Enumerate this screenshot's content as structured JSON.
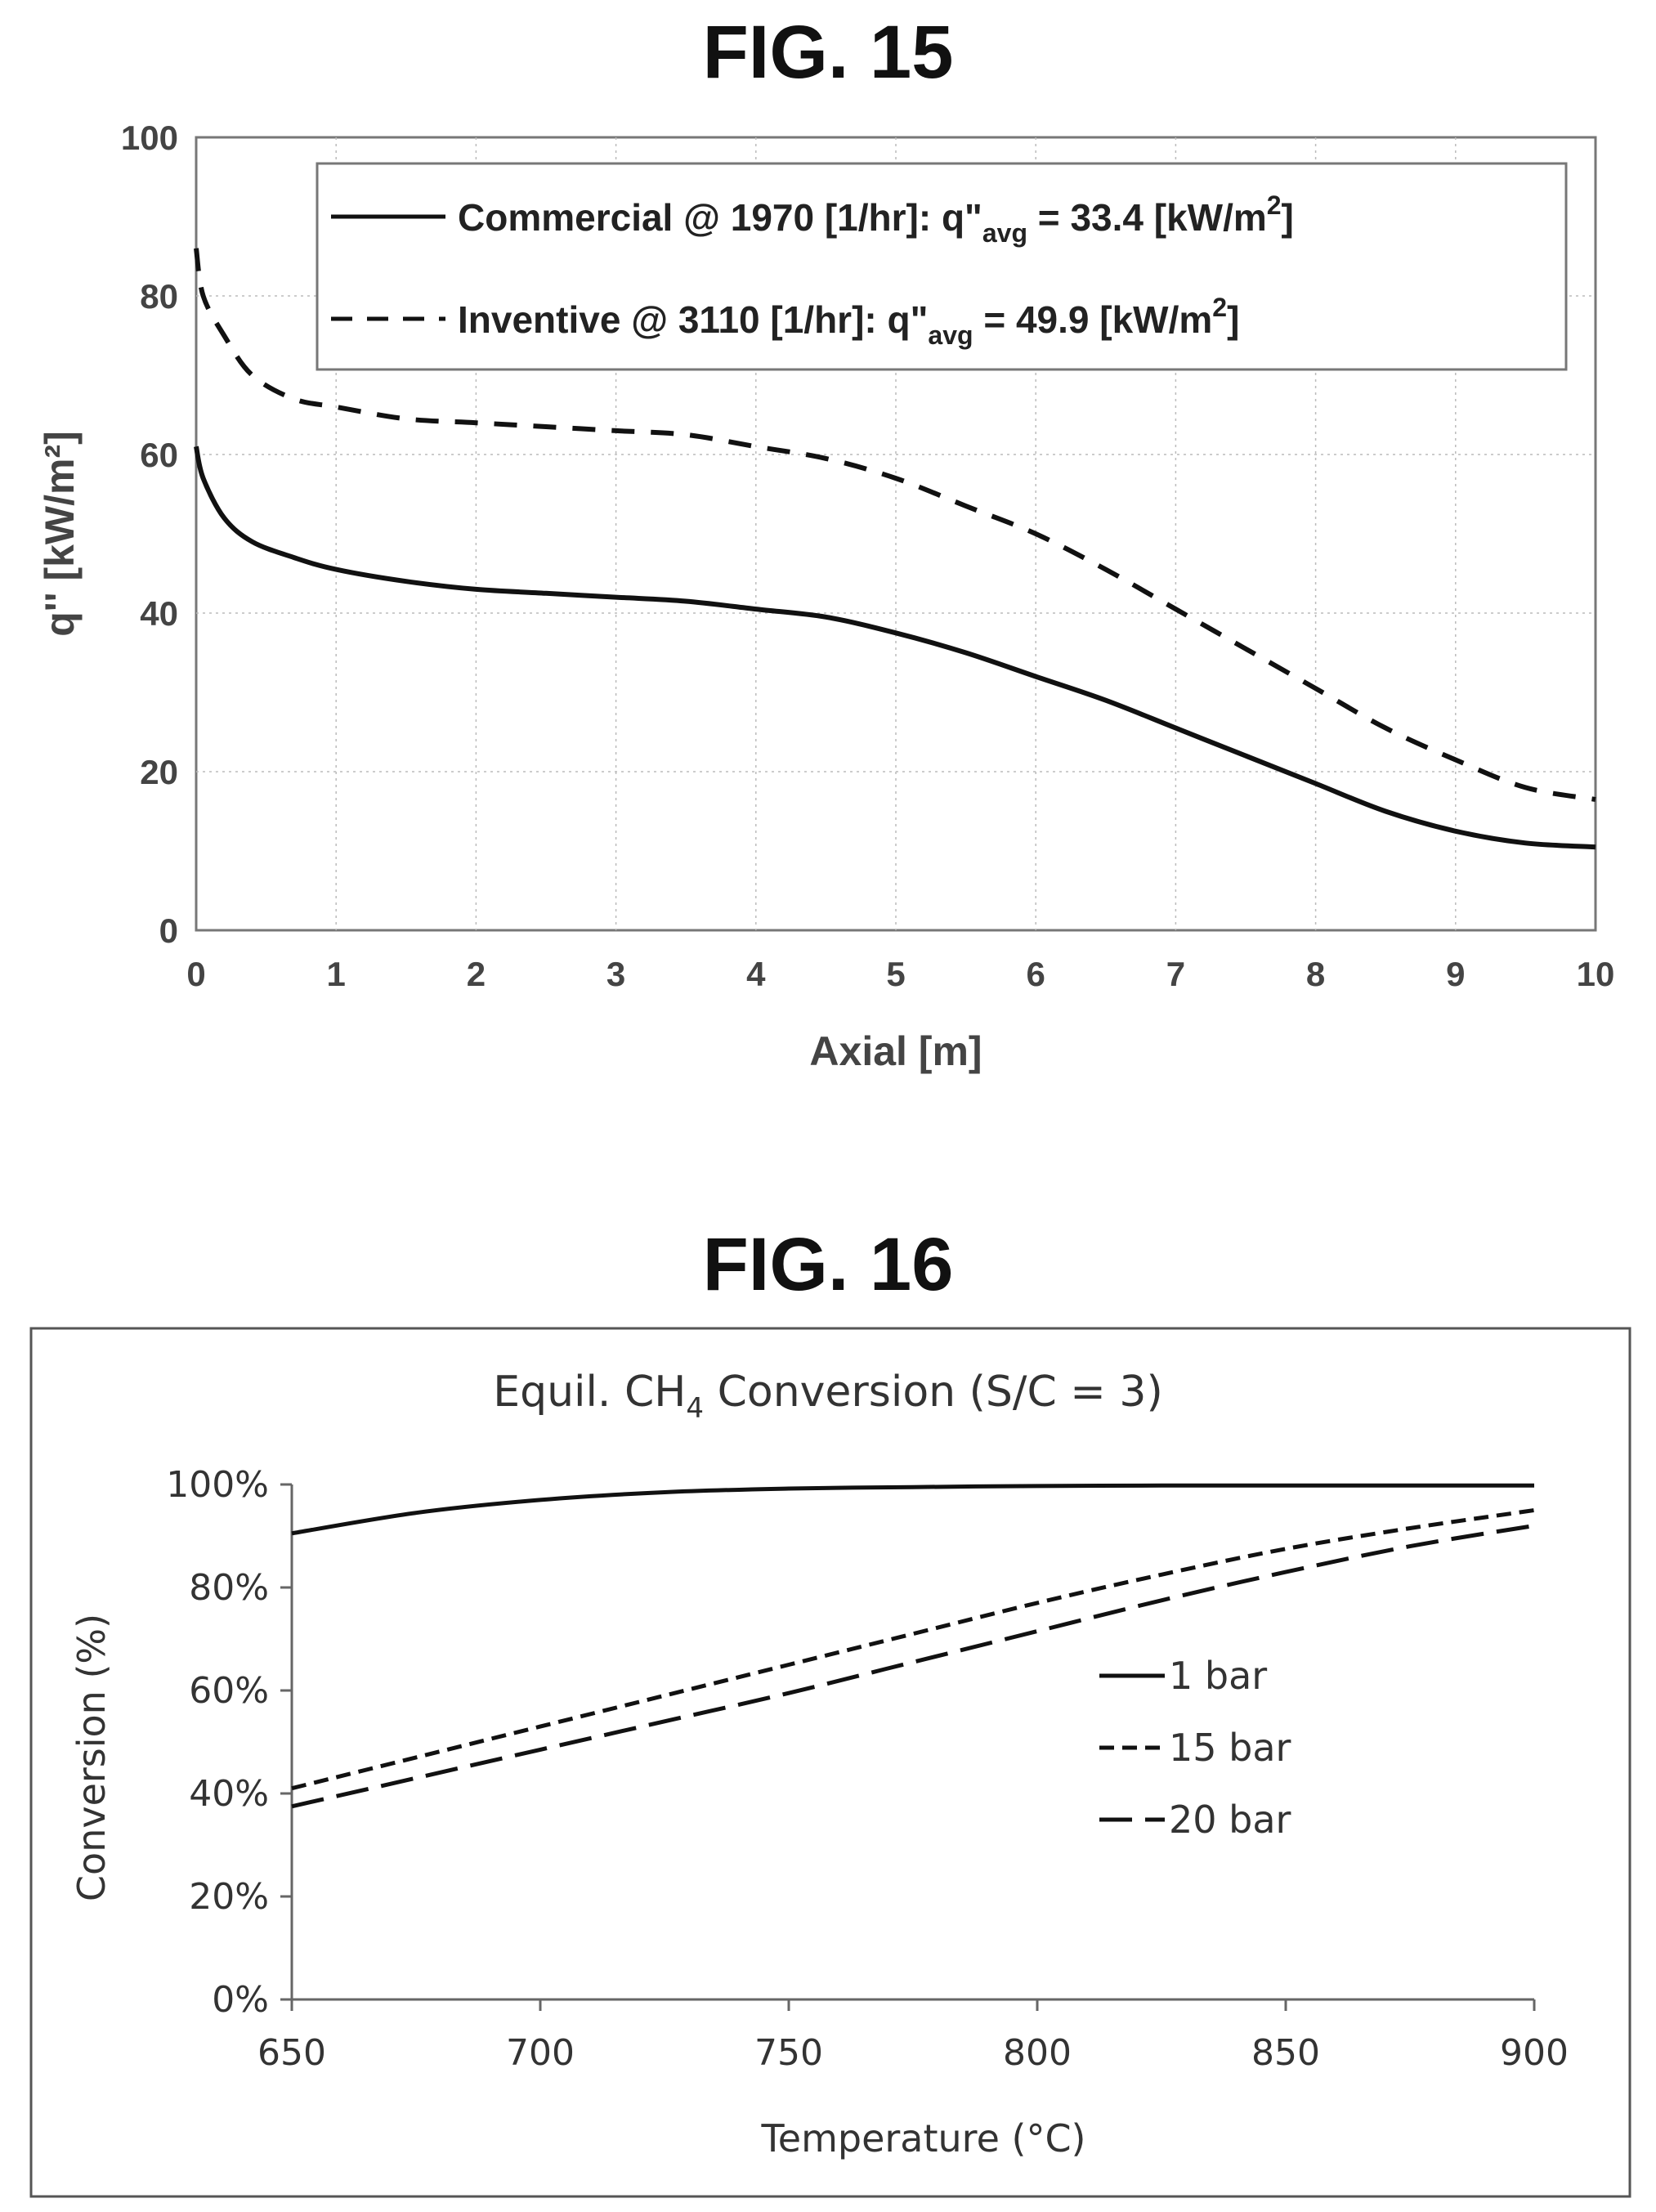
{
  "figures": [
    {
      "label": "FIG. 15",
      "chart_data": {
        "type": "line",
        "xlabel": "Axial [m]",
        "ylabel": "q'' [kW/m²]",
        "xlim": [
          0,
          10
        ],
        "ylim": [
          0,
          100
        ],
        "xticks": [
          "0",
          "1",
          "2",
          "3",
          "4",
          "5",
          "6",
          "7",
          "8",
          "9",
          "10"
        ],
        "yticks": [
          "0",
          "20",
          "40",
          "60",
          "80",
          "100"
        ],
        "grid": true,
        "legend_position": "top-right",
        "series": [
          {
            "name": "Commercial @ 1970 [1/hr]: q''avg = 33.4 [kW/m2]",
            "legend_main": "Commercial @ 1970 [1/hr]: q\"",
            "legend_sub": "avg",
            "legend_tail": " = 33.4 [kW/m",
            "legend_sup": "2",
            "legend_end": "]",
            "style": "solid",
            "x": [
              0,
              0.05,
              0.2,
              0.4,
              0.7,
              1,
              1.5,
              2,
              2.5,
              3,
              3.5,
              4,
              4.5,
              5,
              5.5,
              6,
              6.5,
              7,
              7.5,
              8,
              8.5,
              9,
              9.5,
              10
            ],
            "y": [
              61,
              57,
              52,
              49,
              47,
              45.5,
              44,
              43,
              42.5,
              42,
              41.5,
              40.5,
              39.5,
              37.5,
              35,
              32,
              29,
              25.5,
              22,
              18.5,
              15,
              12.5,
              11,
              10.5
            ]
          },
          {
            "name": "Inventive @ 3110 [1/hr]: q''avg = 49.9 [kW/m2]",
            "legend_main": "Inventive @ 3110 [1/hr]: q\"",
            "legend_sub": "avg",
            "legend_tail": " = 49.9 [kW/m",
            "legend_sup": "2",
            "legend_end": "]",
            "style": "dashed",
            "x": [
              0,
              0.05,
              0.2,
              0.4,
              0.7,
              1,
              1.5,
              2,
              2.5,
              3,
              3.5,
              4,
              4.5,
              5,
              5.5,
              6,
              6.5,
              7,
              7.5,
              8,
              8.5,
              9,
              9.5,
              10
            ],
            "y": [
              86,
              80,
              75,
              70,
              67,
              66,
              64.5,
              64,
              63.5,
              63,
              62.5,
              61,
              59.5,
              57,
              53.5,
              50,
              45.5,
              40.5,
              35.5,
              30.5,
              25.5,
              21.5,
              18,
              16.5
            ]
          }
        ]
      }
    },
    {
      "label": "FIG. 16",
      "chart_data": {
        "type": "line",
        "title_main": "Equil. CH",
        "title_sub": "4",
        "title_tail": " Conversion (S/C = 3)",
        "xlabel": "Temperature (°C)",
        "ylabel": "Conversion (%)",
        "xlim": [
          650,
          900
        ],
        "ylim": [
          0,
          100
        ],
        "xticks": [
          "650",
          "700",
          "750",
          "800",
          "850",
          "900"
        ],
        "yticks": [
          "0%",
          "20%",
          "40%",
          "60%",
          "80%",
          "100%"
        ],
        "grid": false,
        "legend_position": "center-right",
        "series": [
          {
            "name": "1 bar",
            "style": "solid",
            "x": [
              650,
              675,
              700,
              725,
              750,
              775,
              800,
              825,
              850,
              875,
              900
            ],
            "y": [
              90.5,
              94.5,
              97,
              98.5,
              99.2,
              99.5,
              99.7,
              99.8,
              99.8,
              99.8,
              99.8
            ]
          },
          {
            "name": "15 bar",
            "style": "short-dash",
            "x": [
              650,
              675,
              700,
              725,
              750,
              775,
              800,
              825,
              850,
              875,
              900
            ],
            "y": [
              41,
              47,
              53,
              59,
              65,
              71,
              77,
              82.5,
              87.5,
              91.5,
              95
            ]
          },
          {
            "name": "20 bar",
            "style": "long-dash",
            "x": [
              650,
              675,
              700,
              725,
              750,
              775,
              800,
              825,
              850,
              875,
              900
            ],
            "y": [
              37.5,
              43,
              48.5,
              54,
              59.5,
              65.5,
              71.5,
              77.5,
              83,
              88,
              92
            ]
          }
        ]
      }
    }
  ]
}
